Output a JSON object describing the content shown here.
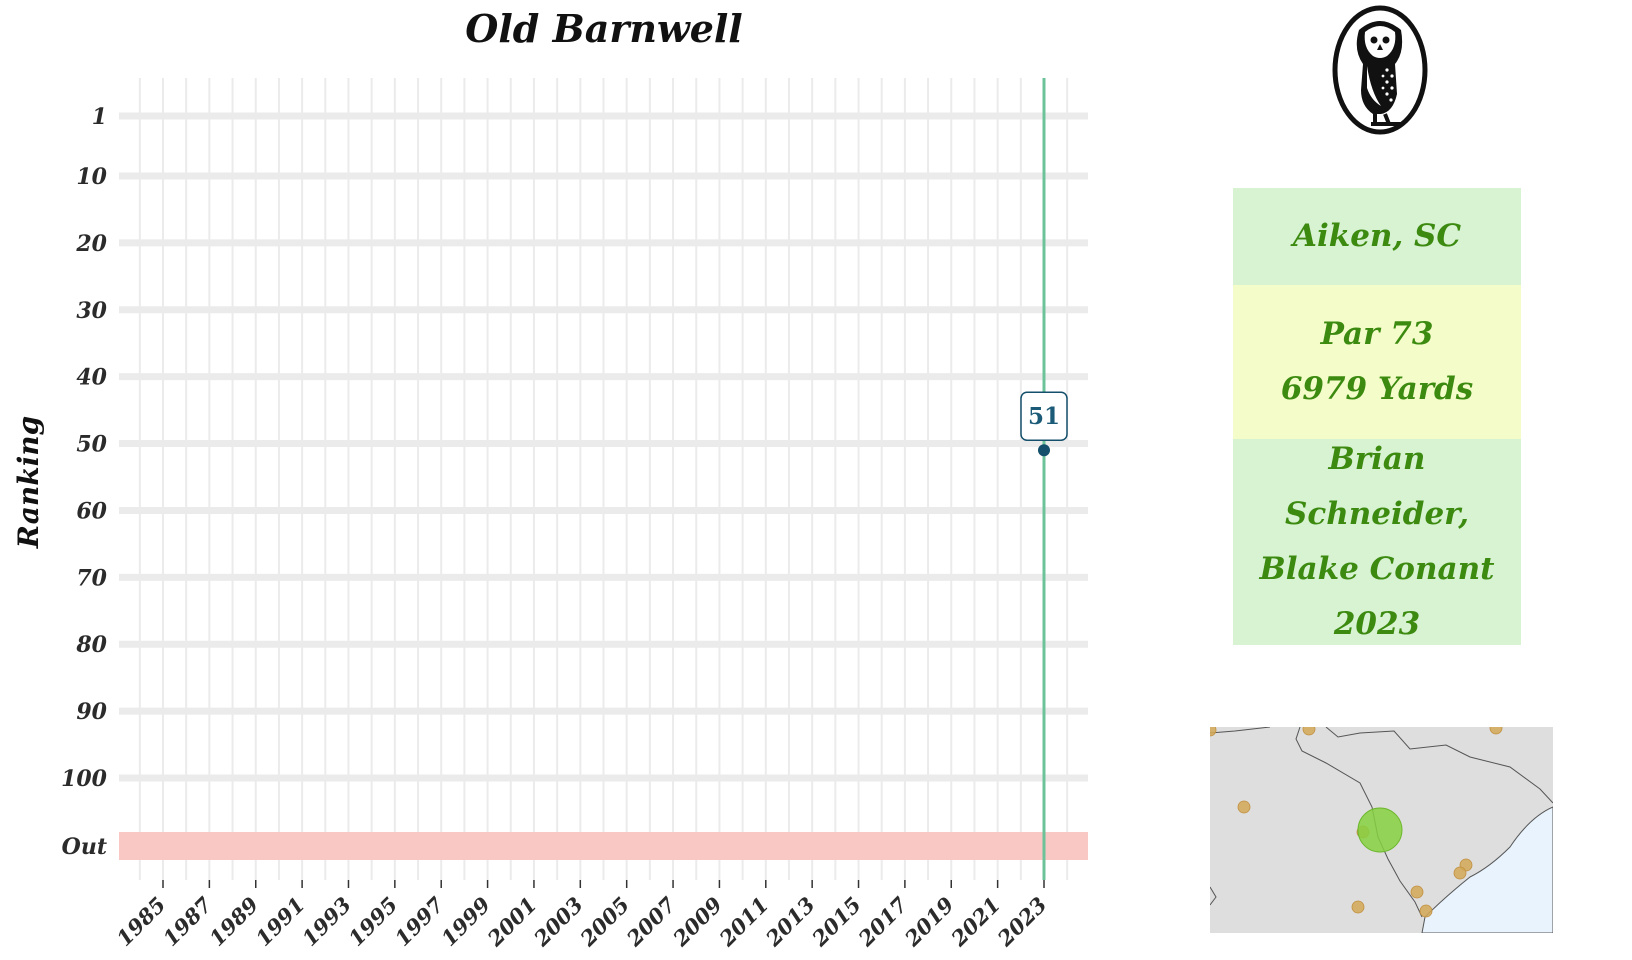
{
  "chart_data": {
    "type": "line",
    "title": "Old Barnwell",
    "ylabel": "Ranking",
    "xlabel": "",
    "x_ticks": [
      "1985",
      "1987",
      "1989",
      "1991",
      "1993",
      "1995",
      "1997",
      "1999",
      "2001",
      "2003",
      "2005",
      "2007",
      "2009",
      "2011",
      "2013",
      "2015",
      "2017",
      "2019",
      "2021",
      "2023"
    ],
    "y_ticks": [
      "1",
      "10",
      "20",
      "30",
      "40",
      "50",
      "60",
      "70",
      "80",
      "90",
      "100",
      "Out"
    ],
    "xlim": [
      1984,
      2025
    ],
    "ylim_reversed": [
      1,
      100
    ],
    "out_band_color": "#f9c8c4",
    "highlight_year": 2023,
    "highlight_line_color": "#6cc39a",
    "point_color": "#144f6b",
    "grid": true,
    "series": [
      {
        "points": [
          {
            "x": 2023,
            "y": 51
          }
        ]
      }
    ],
    "annotations": [
      {
        "x": 2023,
        "y": 51,
        "text": "51"
      }
    ]
  },
  "info": {
    "location": "Aiken, SC",
    "par": "Par 73",
    "yards": "6979 Yards",
    "designer_1": "Brian Schneider,",
    "designer_2": "Blake Conant",
    "year": "2023",
    "colors": {
      "text": "#3c8a10",
      "box_green": "#d7f3d2",
      "box_yellow": "#f4fdc9"
    }
  },
  "logo": {
    "icon": "owl-icon"
  },
  "map": {
    "icon": "south-carolina-locator-map",
    "land_color": "#dedede",
    "water_color": "#e8f3fd",
    "highlight_color": "#86d13f",
    "other_courses_color": "#d2a856"
  }
}
